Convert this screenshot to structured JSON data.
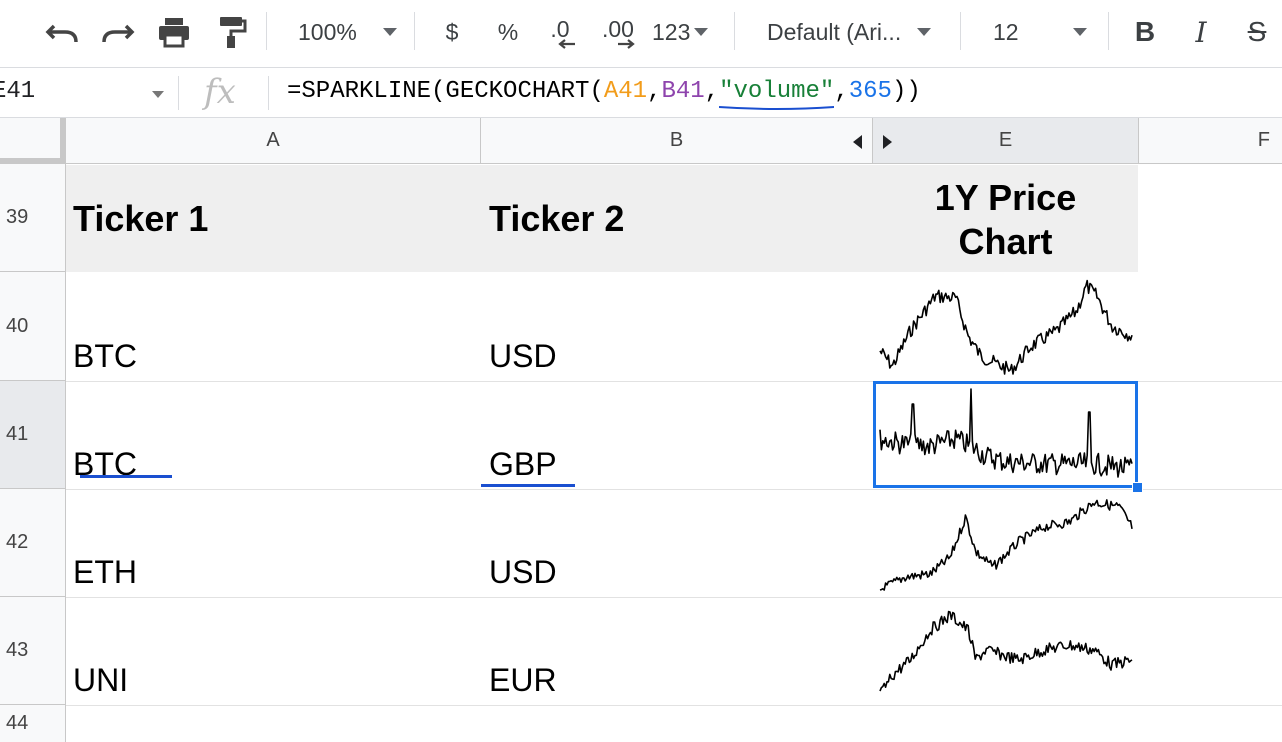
{
  "toolbar": {
    "zoom": "100%",
    "currency": "$",
    "percent": "%",
    "decrease_decimal": ".0",
    "increase_decimal": ".00",
    "more_formats": "123",
    "font": "Default (Ari...",
    "font_size": "12",
    "bold": "B",
    "italic": "I",
    "strikethrough": "S"
  },
  "formula_bar": {
    "name_box": "E41",
    "fx": "fx",
    "formula": {
      "prefix": "=SPARKLINE(GECKOCHART(",
      "arg1": "A41",
      "comma1": ",",
      "arg2": "B41",
      "comma2": ",",
      "arg3": "\"volume\"",
      "comma3": ",",
      "arg4": "365",
      "suffix": "))"
    }
  },
  "columns": [
    {
      "label": "A",
      "selected": false
    },
    {
      "label": "B",
      "selected": false
    },
    {
      "label": "E",
      "selected": true
    },
    {
      "label": "F",
      "selected": false
    }
  ],
  "rows": [
    {
      "num": "39",
      "selected": false
    },
    {
      "num": "40",
      "selected": false
    },
    {
      "num": "41",
      "selected": true
    },
    {
      "num": "42",
      "selected": false
    },
    {
      "num": "43",
      "selected": false
    },
    {
      "num": "44",
      "selected": false
    }
  ],
  "header_row": {
    "ticker1": "Ticker 1",
    "ticker2": "Ticker 2",
    "chart_line1": "1Y Price",
    "chart_line2": "Chart"
  },
  "data_rows": [
    {
      "ticker1": "BTC",
      "ticker2": "USD",
      "sparkline": "price"
    },
    {
      "ticker1": "BTC",
      "ticker2": "GBP",
      "sparkline": "volume"
    },
    {
      "ticker1": "ETH",
      "ticker2": "USD",
      "sparkline": "price"
    },
    {
      "ticker1": "UNI",
      "ticker2": "EUR",
      "sparkline": "price"
    }
  ],
  "selected_cell": "E41",
  "colors": {
    "selection": "#1a73e8",
    "header_band": "#efefef",
    "formula_ref_a": "#f29c1a",
    "formula_ref_b": "#8e44ad",
    "formula_string": "#188038",
    "formula_number": "#1a73e8"
  }
}
